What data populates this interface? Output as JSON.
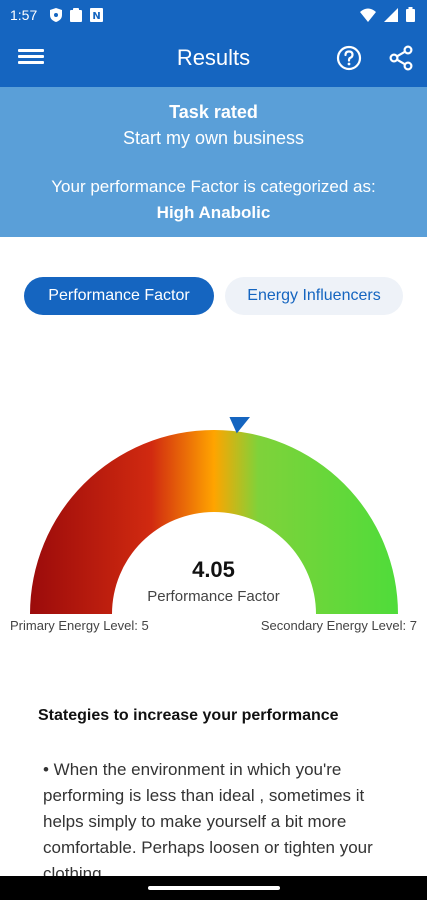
{
  "status_bar": {
    "time": "1:57",
    "left_icons": [
      "shield-icon",
      "clipboard-icon",
      "app-notification-icon"
    ],
    "right_icons": [
      "wifi-icon",
      "signal-icon",
      "battery-icon"
    ]
  },
  "app_bar": {
    "title": "Results",
    "menu_icon": "menu-icon",
    "help_icon": "help-icon",
    "share_icon": "share-icon"
  },
  "summary": {
    "task_label": "Task rated",
    "task_name": "Start my own business",
    "category_prompt": "Your performance Factor is categorized as:",
    "category_value": "High Anabolic"
  },
  "tabs": [
    {
      "label": "Performance Factor",
      "active": true
    },
    {
      "label": "Energy Influencers",
      "active": false
    }
  ],
  "gauge": {
    "value": "4.05",
    "label": "Performance Factor",
    "pointer_fraction": 0.54,
    "primary_level": "Primary Energy Level: 5",
    "secondary_level": "Secondary Energy Level: 7",
    "colors": [
      "#9b0b0b",
      "#d12a10",
      "#ffa400",
      "#4fdc3a"
    ]
  },
  "strategies": {
    "title": "Stategies to increase your performance",
    "text": "• When the environment in which you're performing is less than ideal , sometimes it helps simply to make yourself a bit more comfortable. Perhaps loosen or tighten your clothing"
  },
  "colors": {
    "primary": "#1565c0",
    "summary_bg": "#5a9fd8"
  }
}
